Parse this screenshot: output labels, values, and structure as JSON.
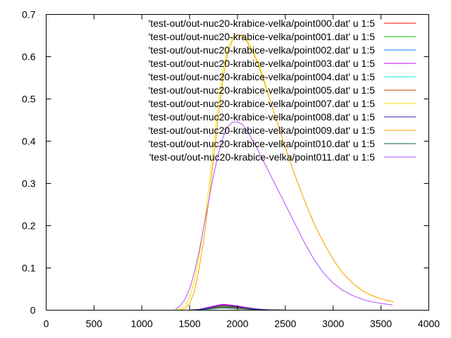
{
  "chart_data": {
    "type": "line",
    "title": "",
    "xlabel": "",
    "ylabel": "",
    "xlim": [
      0,
      4000
    ],
    "ylim": [
      0,
      0.7
    ],
    "xticks": [
      0,
      500,
      1000,
      1500,
      2000,
      2500,
      3000,
      3500,
      4000
    ],
    "yticks": [
      0,
      0.1,
      0.2,
      0.3,
      0.4,
      0.5,
      0.6,
      0.7
    ],
    "xtick_labels": [
      "0",
      "500",
      "1000",
      "1500",
      "2000",
      "2500",
      "3000",
      "3500",
      "4000"
    ],
    "ytick_labels": [
      "0",
      "0.1",
      "0.2",
      "0.3",
      "0.4",
      "0.5",
      "0.6",
      "0.7"
    ],
    "grid": false,
    "legend_position": "top-right",
    "series": [
      {
        "name": "'test-out/out-nuc20-krabice-velka/point000.dat' u 1:5",
        "color": "#ff0000",
        "x": [
          1500,
          1600,
          1700,
          1800,
          1850,
          1900,
          2000,
          2100,
          2200,
          2300,
          2400,
          2500
        ],
        "y": [
          0,
          0.002,
          0.006,
          0.011,
          0.013,
          0.012,
          0.009,
          0.006,
          0.003,
          0.001,
          0.0005,
          0
        ]
      },
      {
        "name": "'test-out/out-nuc20-krabice-velka/point001.dat' u 1:5",
        "color": "#00c000",
        "x": [
          1500,
          1600,
          1700,
          1800,
          1850,
          1900,
          2000,
          2100,
          2200,
          2300,
          2400,
          2500
        ],
        "y": [
          0,
          0.0015,
          0.004,
          0.008,
          0.009,
          0.0085,
          0.007,
          0.004,
          0.002,
          0.001,
          0.0003,
          0
        ]
      },
      {
        "name": "'test-out/out-nuc20-krabice-velka/point002.dat' u 1:5",
        "color": "#0080ff",
        "x": [
          1500,
          1600,
          1700,
          1800,
          1850,
          1900,
          2000,
          2100,
          2200,
          2300,
          2400,
          2500
        ],
        "y": [
          0,
          0.001,
          0.003,
          0.006,
          0.007,
          0.0065,
          0.005,
          0.003,
          0.0015,
          0.0007,
          0.0002,
          0
        ]
      },
      {
        "name": "'test-out/out-nuc20-krabice-velka/point003.dat' u 1:5",
        "color": "#c000ff",
        "x": [
          1500,
          1600,
          1700,
          1800,
          1850,
          1900,
          2000,
          2100,
          2200,
          2300,
          2400,
          2500
        ],
        "y": [
          0,
          0.002,
          0.007,
          0.012,
          0.014,
          0.013,
          0.01,
          0.006,
          0.003,
          0.0012,
          0.0004,
          0
        ]
      },
      {
        "name": "'test-out/out-nuc20-krabice-velka/point004.dat' u 1:5",
        "color": "#00eeee",
        "x": [
          1500,
          1600,
          1700,
          1800,
          1850,
          1900,
          2000,
          2100,
          2200,
          2300,
          2400,
          2500
        ],
        "y": [
          0,
          0.0008,
          0.0025,
          0.005,
          0.006,
          0.0055,
          0.004,
          0.0025,
          0.0012,
          0.0005,
          0.0002,
          0
        ]
      },
      {
        "name": "'test-out/out-nuc20-krabice-velka/point005.dat' u 1:5",
        "color": "#c04000",
        "x": [
          1500,
          1600,
          1700,
          1800,
          1850,
          1900,
          2000,
          2100,
          2200,
          2300,
          2400,
          2500
        ],
        "y": [
          0,
          0.0012,
          0.0035,
          0.007,
          0.008,
          0.0075,
          0.006,
          0.0035,
          0.0017,
          0.0008,
          0.0003,
          0
        ]
      },
      {
        "name": "'test-out/out-nuc20-krabice-velka/point007.dat' u 1:5",
        "color": "#eeee00",
        "x": [
          1350,
          1400,
          1450,
          1500,
          1550,
          1600,
          1650,
          1700,
          1750,
          1800,
          1850,
          1900,
          1950,
          2000,
          2050,
          2100,
          2150,
          2200,
          2250,
          2300,
          2350,
          2400,
          2450,
          2500,
          2600,
          2700,
          2800,
          2900,
          3000,
          3100,
          3200,
          3300,
          3400,
          3500,
          3600,
          3630
        ],
        "y": [
          0,
          0.003,
          0.01,
          0.03,
          0.07,
          0.13,
          0.2,
          0.29,
          0.39,
          0.49,
          0.57,
          0.62,
          0.645,
          0.652,
          0.65,
          0.64,
          0.62,
          0.595,
          0.565,
          0.53,
          0.49,
          0.455,
          0.42,
          0.385,
          0.32,
          0.26,
          0.205,
          0.16,
          0.12,
          0.088,
          0.065,
          0.047,
          0.035,
          0.027,
          0.021,
          0.02
        ]
      },
      {
        "name": "'test-out/out-nuc20-krabice-velka/point008.dat' u 1:5",
        "color": "#2020c0",
        "x": [
          1500,
          1600,
          1700,
          1800,
          1850,
          1900,
          2000,
          2100,
          2200,
          2300,
          2400,
          2500
        ],
        "y": [
          0,
          0.0015,
          0.005,
          0.01,
          0.011,
          0.0105,
          0.008,
          0.005,
          0.0025,
          0.001,
          0.0003,
          0
        ]
      },
      {
        "name": "'test-out/out-nuc20-krabice-velka/point009.dat' u 1:5",
        "color": "#ffa000",
        "x": [
          1400,
          1450,
          1500,
          1550,
          1600,
          1650,
          1700,
          1750,
          1800,
          1850,
          1900,
          1950,
          2000,
          2050,
          2100,
          2150,
          2200,
          2250,
          2300,
          2350,
          2400,
          2450,
          2500,
          2600,
          2700,
          2800,
          2900,
          3000,
          3100,
          3200,
          3300,
          3400,
          3500,
          3600,
          3630
        ],
        "y": [
          0,
          0.004,
          0.015,
          0.045,
          0.1,
          0.17,
          0.26,
          0.36,
          0.46,
          0.55,
          0.61,
          0.64,
          0.652,
          0.648,
          0.635,
          0.615,
          0.59,
          0.56,
          0.525,
          0.49,
          0.455,
          0.42,
          0.385,
          0.32,
          0.26,
          0.205,
          0.16,
          0.12,
          0.088,
          0.065,
          0.047,
          0.035,
          0.027,
          0.021,
          0.02
        ]
      },
      {
        "name": "'test-out/out-nuc20-krabice-velka/point010.dat' u 1:5",
        "color": "#006040",
        "x": [
          1500,
          1600,
          1700,
          1800,
          1850,
          1900,
          2000,
          2100,
          2200,
          2300,
          2400,
          2500
        ],
        "y": [
          0,
          0.001,
          0.003,
          0.005,
          0.0055,
          0.005,
          0.004,
          0.0025,
          0.0012,
          0.0005,
          0.0002,
          0
        ]
      },
      {
        "name": "'test-out/out-nuc20-krabice-velka/point011.dat' u 1:5",
        "color": "#b050ff",
        "x": [
          1350,
          1400,
          1450,
          1500,
          1550,
          1600,
          1650,
          1700,
          1750,
          1800,
          1850,
          1900,
          1950,
          2000,
          2050,
          2100,
          2150,
          2200,
          2250,
          2300,
          2400,
          2500,
          2600,
          2700,
          2800,
          2900,
          3000,
          3100,
          3200,
          3300,
          3400,
          3500,
          3600,
          3620
        ],
        "y": [
          0.002,
          0.01,
          0.025,
          0.05,
          0.09,
          0.14,
          0.2,
          0.26,
          0.32,
          0.37,
          0.41,
          0.435,
          0.445,
          0.446,
          0.44,
          0.425,
          0.405,
          0.385,
          0.362,
          0.34,
          0.295,
          0.25,
          0.205,
          0.16,
          0.12,
          0.088,
          0.064,
          0.047,
          0.035,
          0.026,
          0.02,
          0.016,
          0.013,
          0.012
        ]
      }
    ]
  }
}
